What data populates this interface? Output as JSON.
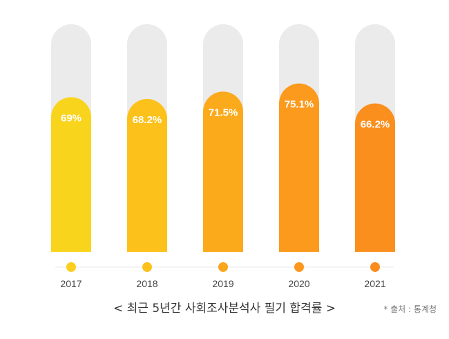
{
  "chart_data": {
    "type": "bar",
    "categories": [
      "2017",
      "2018",
      "2019",
      "2020",
      "2021"
    ],
    "values": [
      69,
      68.2,
      71.5,
      75.1,
      66.2
    ],
    "data_labels": [
      "69%",
      "68.2%",
      "71.5%",
      "75.1%",
      "66.2%"
    ],
    "title": "< 최근 5년간 사회조사분석사 필기 합격률 >",
    "source": "* 출처 : 통계청",
    "xlabel": "",
    "ylabel": "",
    "ylim": [
      0,
      100
    ],
    "grid": false,
    "legend": "none",
    "colors": {
      "bars": [
        "#F9D41D",
        "#FCC21B",
        "#FBAA1C",
        "#FB9A1D",
        "#FA8F1E"
      ],
      "dots": [
        "#FCCF1E",
        "#FCC21B",
        "#FBA61C",
        "#FB981D",
        "#FA8C1E"
      ],
      "track": "#EBEBEB",
      "label_text": "#FFFFFF",
      "year_text": "#444444"
    }
  }
}
